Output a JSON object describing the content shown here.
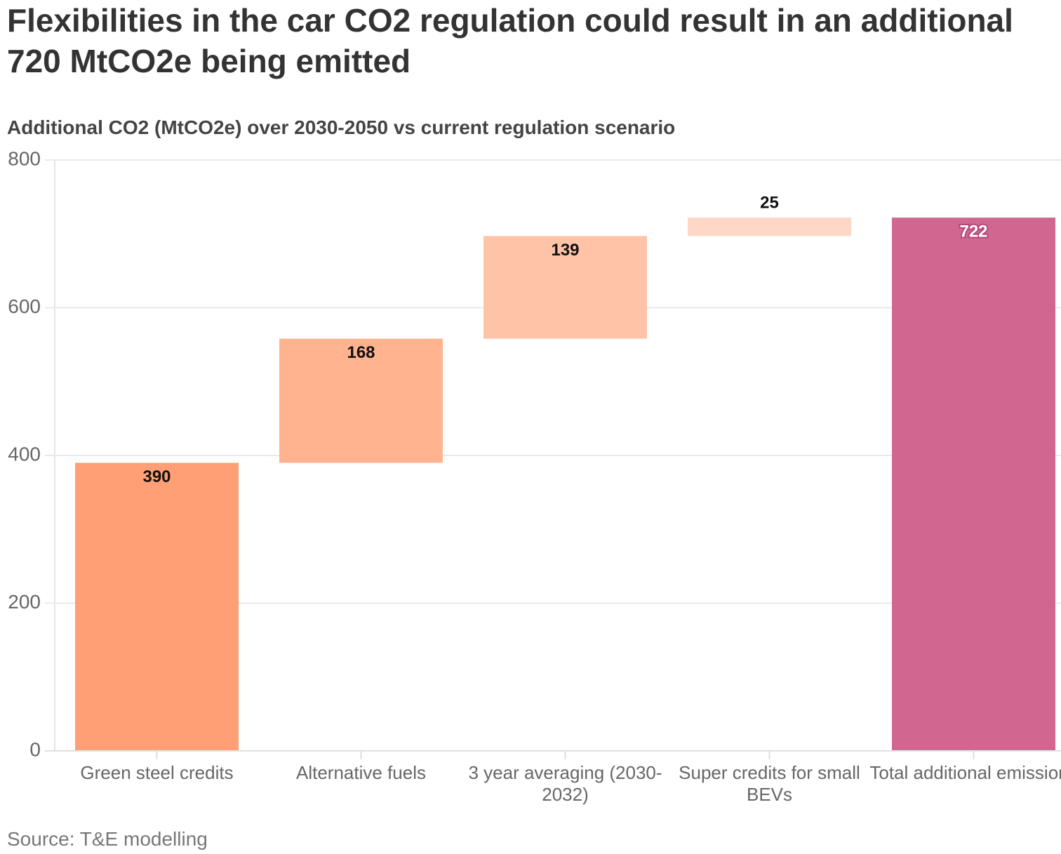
{
  "chart_data": {
    "type": "waterfall",
    "title": "Flexibilities in the car CO2 regulation could result in an additional 720 MtCO2e being emitted",
    "subtitle": "Additional CO2 (MtCO2e) over 2030-2050 vs current regulation scenario",
    "source": "Source: T&E modelling",
    "categories": [
      "Green steel credits",
      "Alternative fuels",
      "3 year averaging (2030-2032)",
      "Super credits for small BEVs",
      "Total additional emissions"
    ],
    "values": [
      390,
      168,
      139,
      25,
      722
    ],
    "totals": [
      false,
      false,
      false,
      false,
      true
    ],
    "colors": [
      "#ff9f75",
      "#ffb38f",
      "#ffc3a8",
      "#ffd7c6",
      "#cf6791"
    ],
    "ylim": [
      0,
      800
    ],
    "yticks": [
      0,
      200,
      400,
      600,
      800
    ],
    "grid": true
  }
}
